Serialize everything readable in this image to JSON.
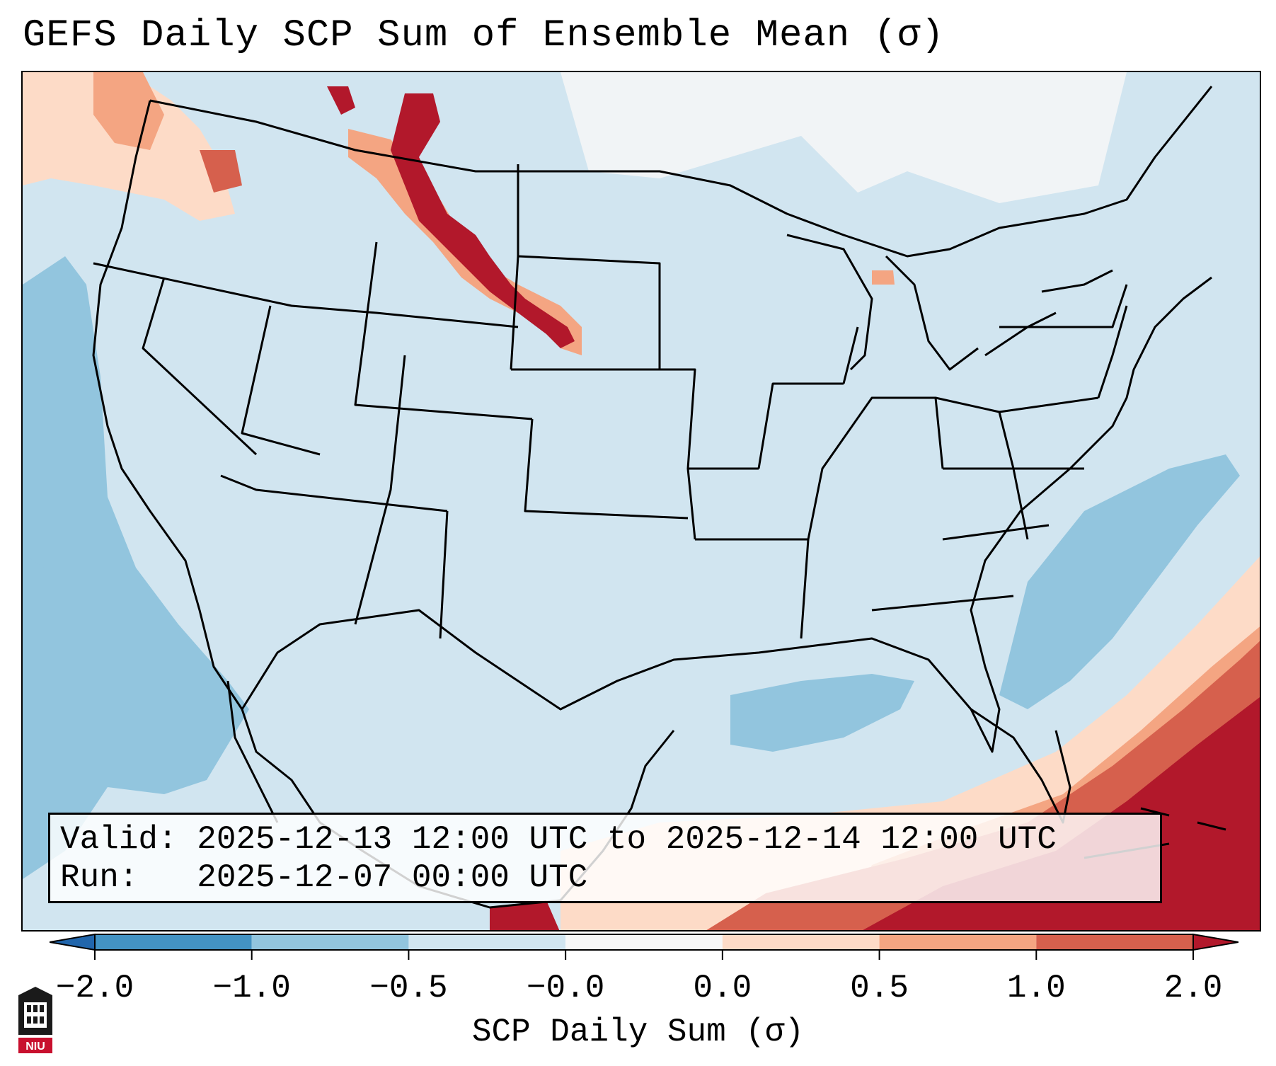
{
  "title": "GEFS Daily SCP Sum of Ensemble Mean (σ)",
  "valid_line": "Valid: 2025-12-13 12:00 UTC to 2025-12-14 12:00 UTC",
  "run_line": "Run:   2025-12-07 00:00 UTC",
  "colorbar": {
    "label": "SCP Daily Sum (σ)",
    "ticks": [
      "−2.0",
      "−1.0",
      "−0.5",
      "−0.0",
      "0.0",
      "0.5",
      "1.0",
      "2.0"
    ],
    "bins": [
      {
        "from": -2.0,
        "to": -1.0,
        "color": "#4393c3"
      },
      {
        "from": -1.0,
        "to": -0.5,
        "color": "#92c5de"
      },
      {
        "from": -0.5,
        "to": -0.0,
        "color": "#d1e5f0"
      },
      {
        "from": -0.0,
        "to": 0.0,
        "color": "#f7f7f7"
      },
      {
        "from": 0.0,
        "to": 0.5,
        "color": "#fddbc7"
      },
      {
        "from": 0.5,
        "to": 1.0,
        "color": "#f4a582"
      },
      {
        "from": 1.0,
        "to": 2.0,
        "color": "#d6604d"
      },
      {
        "from": 2.0,
        "to": 2.5,
        "color": "#b2182b"
      }
    ],
    "under_color": "#2166ac",
    "over_color": "#b2182b"
  },
  "colors": {
    "background_field": "#d1e5f0",
    "neutral": "#f7f7f7",
    "low_anomaly": "#92c5de",
    "high_light": "#fddbc7",
    "high_mid": "#f4a582",
    "high_strong": "#d6604d",
    "high_max": "#b2182b"
  },
  "logo": {
    "text": "NIU",
    "color": "#c8102e"
  }
}
